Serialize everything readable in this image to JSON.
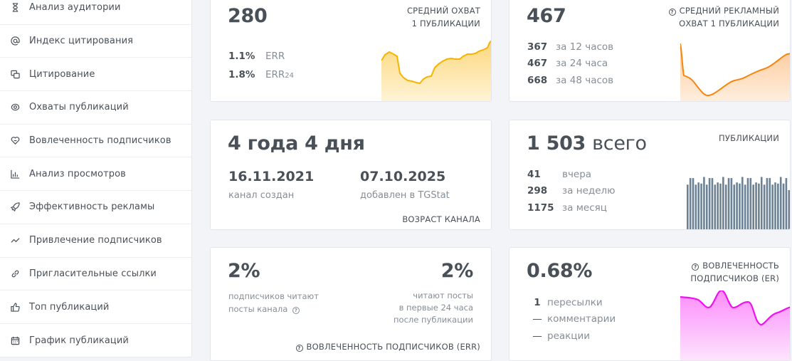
{
  "sidebar": {
    "items": [
      {
        "label": "Анализ аудитории",
        "icon": "hourglass-icon"
      },
      {
        "label": "Индекс цитирования",
        "icon": "at-icon"
      },
      {
        "label": "Цитирование",
        "icon": "quote-copy-icon"
      },
      {
        "label": "Охваты публикаций",
        "icon": "eye-icon"
      },
      {
        "label": "Вовлеченность подписчиков",
        "icon": "heart-handshake-icon"
      },
      {
        "label": "Анализ просмотров",
        "icon": "bar-chart-icon"
      },
      {
        "label": "Эффективность рекламы",
        "icon": "rocket-icon"
      },
      {
        "label": "Привлечение подписчиков",
        "icon": "trend-icon"
      },
      {
        "label": "Пригласительные ссылки",
        "icon": "link-icon"
      },
      {
        "label": "Топ публикаций",
        "icon": "thumbs-up-icon"
      },
      {
        "label": "График публикаций",
        "icon": "calendar-icon"
      }
    ]
  },
  "cards": {
    "avg_reach": {
      "value": "280",
      "caption_line1": "СРЕДНИЙ ОХВАТ",
      "caption_line2": "1 ПУБЛИКАЦИИ",
      "rows": [
        {
          "value": "1.1%",
          "label": "ERR",
          "sub": ""
        },
        {
          "value": "1.8%",
          "label": "ERR",
          "sub": "24"
        }
      ],
      "color": "#f5b400"
    },
    "ad_reach": {
      "value": "467",
      "caption_line1": "СРЕДНИЙ РЕКЛАМНЫЙ",
      "caption_line2": "ОХВАТ 1 ПУБЛИКАЦИИ",
      "rows": [
        {
          "value": "367",
          "label": "за 12 часов"
        },
        {
          "value": "467",
          "label": "за 24 часа"
        },
        {
          "value": "668",
          "label": "за 48 часов"
        }
      ],
      "color": "#f7860e"
    },
    "channel_age": {
      "value": "4 года 4 дня",
      "created_date": "16.11.2021",
      "created_label": "канал создан",
      "added_date": "07.10.2025",
      "added_label": "добавлен в TGStat",
      "caption": "ВОЗРАСТ КАНАЛА"
    },
    "publications": {
      "value": "1 503",
      "value_suffix": "всего",
      "caption": "ПУБЛИКАЦИИ",
      "rows": [
        {
          "value": "41",
          "label": "вчера"
        },
        {
          "value": "298",
          "label": "за неделю"
        },
        {
          "value": "1175",
          "label": "за месяц"
        }
      ],
      "color": "#6c8193"
    },
    "err": {
      "left_value": "2%",
      "left_line1": "подписчиков читают",
      "left_line2": "посты канала",
      "right_value": "2%",
      "right_line1": "читают посты",
      "right_line2": "в первые 24 часа",
      "right_line3": "после публикации",
      "caption": "ВОВЛЕЧЕННОСТЬ ПОДПИСЧИКОВ (ERR)"
    },
    "er": {
      "value": "0.68%",
      "caption_line1": "ВОВЛЕЧЕННОСТЬ",
      "caption_line2": "ПОДПИСЧИКОВ (ER)",
      "rows": [
        {
          "value": "1",
          "label": "пересылки"
        },
        {
          "value": "—",
          "label": "комментарии"
        },
        {
          "value": "—",
          "label": "реакции"
        }
      ],
      "color": "#f012f0"
    }
  },
  "chart_data": [
    {
      "type": "area",
      "title": "Средний охват 1 публикации",
      "values": [
        55,
        68,
        72,
        68,
        65,
        30,
        22,
        18,
        17,
        15,
        14,
        20,
        23,
        24,
        40,
        47,
        52,
        56,
        58,
        57,
        57,
        62,
        66,
        67,
        68,
        73,
        75,
        78,
        90,
        96
      ]
    },
    {
      "type": "area",
      "title": "Средний рекламный охват 1 публикации",
      "values": [
        100,
        45,
        40,
        28,
        15,
        12,
        18,
        30,
        40,
        43,
        48,
        55,
        60,
        62,
        70,
        78,
        82
      ]
    },
    {
      "type": "bar",
      "title": "Публикации",
      "values": [
        42,
        48,
        48,
        42,
        44,
        43,
        49,
        42,
        48,
        48,
        42,
        44,
        43,
        49,
        42,
        48,
        48,
        42,
        44,
        43,
        49,
        42,
        48,
        48,
        42,
        44,
        43,
        49,
        42,
        48,
        48,
        42,
        44,
        43,
        49,
        43,
        48,
        37
      ]
    },
    {
      "type": "area",
      "title": "Вовлеченность подписчиков (ER)",
      "values": [
        85,
        84,
        82,
        72,
        100,
        72,
        78,
        45,
        58,
        65
      ]
    }
  ]
}
